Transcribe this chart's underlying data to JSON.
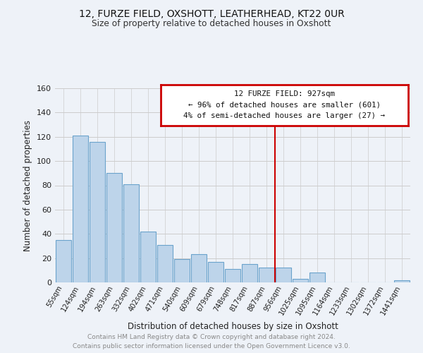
{
  "title1": "12, FURZE FIELD, OXSHOTT, LEATHERHEAD, KT22 0UR",
  "title2": "Size of property relative to detached houses in Oxshott",
  "xlabel": "Distribution of detached houses by size in Oxshott",
  "ylabel": "Number of detached properties",
  "categories": [
    "55sqm",
    "124sqm",
    "194sqm",
    "263sqm",
    "332sqm",
    "402sqm",
    "471sqm",
    "540sqm",
    "609sqm",
    "679sqm",
    "748sqm",
    "817sqm",
    "887sqm",
    "956sqm",
    "1025sqm",
    "1095sqm",
    "1164sqm",
    "1233sqm",
    "1302sqm",
    "1372sqm",
    "1441sqm"
  ],
  "values": [
    35,
    121,
    116,
    90,
    81,
    42,
    31,
    19,
    23,
    17,
    11,
    15,
    12,
    12,
    3,
    8,
    0,
    0,
    0,
    0,
    2
  ],
  "bar_color": "#BDD4EA",
  "bar_edge_color": "#6BA3CC",
  "grid_color": "#CCCCCC",
  "annotation_line1": "12 FURZE FIELD: 927sqm",
  "annotation_line2": "← 96% of detached houses are smaller (601)",
  "annotation_line3": "4% of semi-detached houses are larger (27) →",
  "vline_color": "#CC0000",
  "ylim": [
    0,
    160
  ],
  "yticks": [
    0,
    20,
    40,
    60,
    80,
    100,
    120,
    140,
    160
  ],
  "footer": "Contains HM Land Registry data © Crown copyright and database right 2024.\nContains public sector information licensed under the Open Government Licence v3.0.",
  "bg_color": "#EEF2F8"
}
